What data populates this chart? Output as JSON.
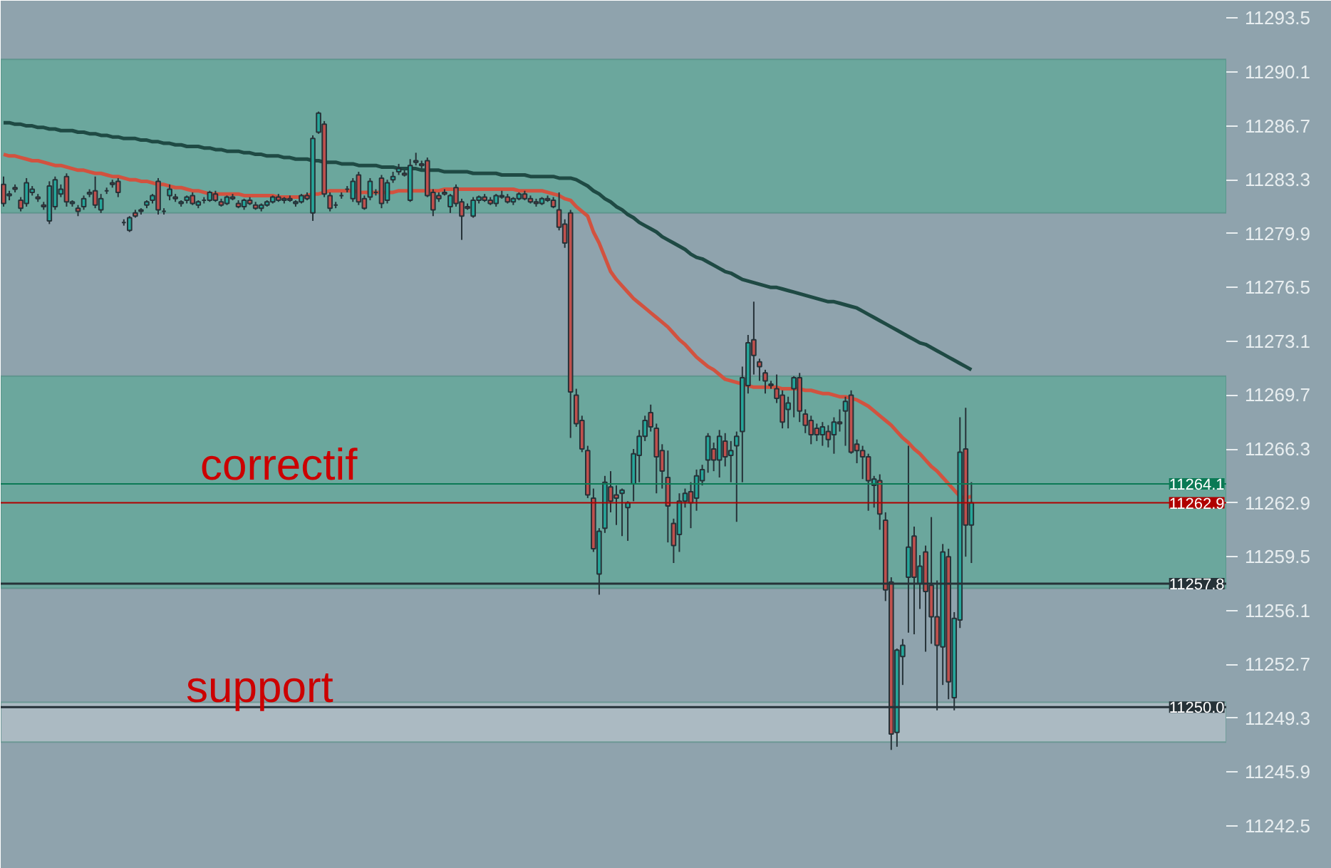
{
  "chart_data": {
    "type": "candlestick",
    "categories": [
      null,
      null,
      null,
      null,
      null,
      null,
      null,
      null,
      null,
      null,
      null,
      null,
      null,
      null,
      null,
      null,
      null,
      null,
      null,
      null,
      null,
      null,
      null,
      null,
      null,
      null,
      null,
      null,
      null,
      null,
      null,
      null,
      null,
      null,
      null,
      null,
      null,
      null,
      null,
      null,
      null,
      null,
      null,
      null,
      null,
      null,
      null,
      null,
      null,
      null,
      null,
      null,
      null,
      null,
      null,
      null,
      null,
      null,
      null,
      null,
      null,
      null,
      null,
      null,
      null,
      null,
      null,
      null,
      null,
      null,
      null,
      null,
      null,
      null,
      null,
      null,
      null,
      null,
      null,
      null,
      null,
      null,
      null,
      null,
      null,
      null,
      null,
      null,
      null,
      null,
      null,
      null,
      null,
      null,
      null,
      null,
      null,
      null,
      null,
      null,
      null,
      null,
      null,
      null,
      null,
      null,
      null,
      null,
      null,
      null,
      null,
      null,
      null,
      null,
      null,
      null,
      null,
      null,
      null,
      null,
      null,
      null,
      null,
      null,
      null,
      null,
      null,
      null,
      null,
      null,
      null,
      null,
      null,
      null,
      null,
      null,
      null,
      null,
      null,
      null,
      null,
      null,
      null,
      null,
      null,
      null,
      null,
      null,
      null,
      null,
      null,
      null,
      null,
      null,
      null,
      null,
      null,
      null,
      null,
      null,
      null,
      null,
      null,
      null,
      null,
      null,
      null,
      null,
      null,
      null,
      null,
      null,
      null,
      null,
      null,
      null,
      null,
      null,
      null,
      null,
      null,
      null,
      null,
      null,
      null,
      null,
      null,
      null,
      null,
      null,
      null,
      null,
      null,
      null,
      null,
      null,
      null,
      null,
      null,
      null,
      null,
      null,
      null,
      null,
      null,
      null,
      null,
      null,
      null,
      null,
      null,
      null,
      null,
      null
    ],
    "ohlc": [
      [
        11283.0,
        11283.5,
        11281.6,
        11281.8
      ],
      [
        11282.3,
        11282.6,
        11282.0,
        11282.4
      ],
      [
        11282.8,
        11283.0,
        11282.5,
        11282.7
      ],
      [
        11282.0,
        11282.2,
        11281.3,
        11281.5
      ],
      [
        11281.8,
        11283.4,
        11281.6,
        11283.1
      ],
      [
        11282.5,
        11282.9,
        11282.3,
        11282.7
      ],
      [
        11282.2,
        11282.4,
        11281.9,
        11282.1
      ],
      [
        11281.7,
        11281.9,
        11281.4,
        11281.6
      ],
      [
        11280.7,
        11283.2,
        11280.5,
        11282.9
      ],
      [
        11281.6,
        11283.5,
        11281.4,
        11283.3
      ],
      [
        11282.4,
        11283.0,
        11282.2,
        11282.7
      ],
      [
        11283.5,
        11283.7,
        11281.6,
        11281.9
      ],
      [
        11281.8,
        11282.0,
        11281.6,
        11281.9
      ],
      [
        11281.5,
        11281.7,
        11281.0,
        11281.3
      ],
      [
        11281.6,
        11282.3,
        11281.4,
        11282.1
      ],
      [
        11282.4,
        11282.7,
        11282.2,
        11282.5
      ],
      [
        11282.6,
        11283.5,
        11281.5,
        11281.7
      ],
      [
        11281.4,
        11282.4,
        11281.2,
        11282.1
      ],
      [
        11282.6,
        11282.8,
        11282.4,
        11282.6
      ],
      [
        11283.1,
        11283.3,
        11282.8,
        11283.0
      ],
      [
        11283.2,
        11283.4,
        11282.2,
        11282.5
      ],
      [
        11280.6,
        11280.8,
        11280.4,
        11280.6
      ],
      [
        11280.1,
        11281.0,
        11280.0,
        11280.9
      ],
      [
        11281.2,
        11281.4,
        11280.9,
        11281.0
      ],
      [
        11281.3,
        11281.5,
        11281.1,
        11281.4
      ],
      [
        11281.7,
        11282.0,
        11281.5,
        11281.9
      ],
      [
        11282.0,
        11282.4,
        11281.8,
        11282.3
      ],
      [
        11283.2,
        11283.4,
        11281.1,
        11281.4
      ],
      [
        11281.3,
        11281.5,
        11281.1,
        11281.3
      ],
      [
        11282.3,
        11283.0,
        11282.0,
        11282.7
      ],
      [
        11282.2,
        11282.4,
        11281.9,
        11282.1
      ],
      [
        11281.8,
        11282.0,
        11281.6,
        11281.9
      ],
      [
        11282.0,
        11282.3,
        11281.8,
        11282.2
      ],
      [
        11282.3,
        11282.5,
        11281.7,
        11281.8
      ],
      [
        11281.7,
        11282.0,
        11281.5,
        11281.9
      ],
      [
        11282.0,
        11282.2,
        11281.8,
        11282.0
      ],
      [
        11282.0,
        11282.6,
        11281.9,
        11282.5
      ],
      [
        11282.4,
        11282.6,
        11281.9,
        11282.0
      ],
      [
        11281.9,
        11282.1,
        11281.6,
        11281.7
      ],
      [
        11281.8,
        11282.3,
        11281.7,
        11282.2
      ],
      [
        11282.2,
        11282.4,
        11282.0,
        11282.1
      ],
      [
        11281.8,
        11282.0,
        11281.5,
        11281.6
      ],
      [
        11281.6,
        11282.1,
        11281.4,
        11282.0
      ],
      [
        11282.0,
        11282.2,
        11281.7,
        11281.8
      ],
      [
        11281.7,
        11281.9,
        11281.4,
        11281.5
      ],
      [
        11281.5,
        11281.8,
        11281.3,
        11281.7
      ],
      [
        11281.7,
        11282.0,
        11281.6,
        11281.9
      ],
      [
        11281.9,
        11282.3,
        11281.8,
        11282.2
      ],
      [
        11282.2,
        11282.4,
        11281.9,
        11282.0
      ],
      [
        11282.0,
        11282.2,
        11281.8,
        11282.1
      ],
      [
        11282.1,
        11282.3,
        11281.9,
        11282.0
      ],
      [
        11281.8,
        11282.0,
        11281.6,
        11281.9
      ],
      [
        11281.9,
        11282.4,
        11281.8,
        11282.3
      ],
      [
        11282.3,
        11282.5,
        11282.0,
        11282.1
      ],
      [
        11281.2,
        11286.1,
        11280.7,
        11285.9
      ],
      [
        11286.3,
        11287.6,
        11286.2,
        11287.5
      ],
      [
        11286.8,
        11287.0,
        11282.2,
        11282.4
      ],
      [
        11282.3,
        11282.5,
        11281.3,
        11281.5
      ],
      [
        11281.7,
        11281.9,
        11281.5,
        11281.7
      ],
      [
        11282.3,
        11282.5,
        11282.1,
        11282.3
      ],
      [
        11282.7,
        11282.9,
        11282.5,
        11282.7
      ],
      [
        11282.1,
        11283.4,
        11281.9,
        11283.2
      ],
      [
        11283.6,
        11283.8,
        11281.7,
        11281.9
      ],
      [
        11282.1,
        11282.3,
        11281.4,
        11281.5
      ],
      [
        11282.2,
        11283.4,
        11282.0,
        11283.2
      ],
      [
        11282.5,
        11282.7,
        11282.3,
        11282.5
      ],
      [
        11283.4,
        11283.6,
        11281.5,
        11281.8
      ],
      [
        11282.0,
        11283.3,
        11281.8,
        11283.1
      ],
      [
        11283.3,
        11283.8,
        11283.1,
        11283.5
      ],
      [
        11283.8,
        11284.3,
        11283.6,
        11284.0
      ],
      [
        11283.7,
        11283.9,
        11283.5,
        11283.6
      ],
      [
        11282.0,
        11284.6,
        11281.9,
        11284.2
      ],
      [
        11284.4,
        11285.0,
        11284.2,
        11284.5
      ],
      [
        11284.3,
        11284.5,
        11284.0,
        11284.2
      ],
      [
        11284.5,
        11284.7,
        11282.2,
        11282.3
      ],
      [
        11282.5,
        11282.7,
        11281.0,
        11281.4
      ],
      [
        11282.3,
        11282.5,
        11281.9,
        11282.1
      ],
      [
        11282.5,
        11282.7,
        11282.3,
        11282.4
      ],
      [
        11281.6,
        11282.4,
        11281.2,
        11282.3
      ],
      [
        11282.8,
        11283.0,
        11281.6,
        11281.8
      ],
      [
        11281.9,
        11282.1,
        11279.5,
        11281.0
      ],
      [
        11281.6,
        11281.8,
        11281.4,
        11281.5
      ],
      [
        11281.0,
        11282.2,
        11280.9,
        11282.0
      ],
      [
        11282.0,
        11282.3,
        11281.8,
        11282.2
      ],
      [
        11282.2,
        11282.4,
        11281.9,
        11282.0
      ],
      [
        11282.0,
        11282.2,
        11281.7,
        11281.8
      ],
      [
        11281.8,
        11282.4,
        11281.6,
        11282.3
      ],
      [
        11282.3,
        11282.6,
        11282.1,
        11282.2
      ],
      [
        11282.2,
        11282.4,
        11281.8,
        11281.9
      ],
      [
        11281.9,
        11282.2,
        11281.7,
        11282.1
      ],
      [
        11282.1,
        11282.5,
        11282.0,
        11282.4
      ],
      [
        11282.4,
        11282.6,
        11282.0,
        11282.1
      ],
      [
        11282.1,
        11282.3,
        11281.8,
        11281.9
      ],
      [
        11281.9,
        11282.1,
        11281.6,
        11281.8
      ],
      [
        11281.8,
        11282.2,
        11281.7,
        11282.1
      ],
      [
        11282.1,
        11282.3,
        11281.9,
        11282.0
      ],
      [
        11282.0,
        11282.2,
        11281.5,
        11281.6
      ],
      [
        11281.4,
        11282.5,
        11280.1,
        11280.3
      ],
      [
        11280.5,
        11280.8,
        11279.0,
        11279.3
      ],
      [
        11281.2,
        11281.4,
        11267.0,
        11269.9
      ],
      [
        11269.7,
        11270.1,
        11267.7,
        11267.9
      ],
      [
        11268.1,
        11268.4,
        11266.1,
        11266.3
      ],
      [
        11266.2,
        11266.5,
        11263.2,
        11263.4
      ],
      [
        11263.2,
        11263.8,
        11259.8,
        11260.0
      ],
      [
        11258.4,
        11261.3,
        11257.1,
        11261.1
      ],
      [
        11261.3,
        11264.6,
        11261.0,
        11264.2
      ],
      [
        11263.9,
        11264.9,
        11262.3,
        11263.0
      ],
      [
        11263.4,
        11264.0,
        11261.5,
        11263.2
      ],
      [
        11263.5,
        11263.8,
        11260.8,
        11263.7
      ],
      [
        11262.6,
        11263.0,
        11260.5,
        11262.9
      ],
      [
        11264.1,
        11266.3,
        11263.0,
        11266.0
      ],
      [
        11265.9,
        11267.5,
        11264.2,
        11267.1
      ],
      [
        11267.1,
        11268.4,
        11266.8,
        11268.1
      ],
      [
        11268.6,
        11269.1,
        11267.4,
        11267.7
      ],
      [
        11267.6,
        11267.9,
        11263.5,
        11265.8
      ],
      [
        11266.2,
        11266.6,
        11263.8,
        11264.9
      ],
      [
        11264.5,
        11266.2,
        11260.4,
        11262.7
      ],
      [
        11261.6,
        11261.9,
        11259.1,
        11260.2
      ],
      [
        11260.9,
        11263.5,
        11259.8,
        11263.0
      ],
      [
        11263.0,
        11263.8,
        11262.6,
        11263.5
      ],
      [
        11263.6,
        11264.2,
        11261.3,
        11262.9
      ],
      [
        11263.2,
        11265.0,
        11262.4,
        11264.6
      ],
      [
        11264.3,
        11265.3,
        11264.0,
        11265.0
      ],
      [
        11265.6,
        11267.3,
        11264.8,
        11267.1
      ],
      [
        11266.3,
        11266.7,
        11264.9,
        11265.6
      ],
      [
        11265.6,
        11267.5,
        11264.5,
        11267.1
      ],
      [
        11266.8,
        11267.3,
        11265.2,
        11265.8
      ],
      [
        11265.9,
        11266.8,
        11264.2,
        11266.2
      ],
      [
        11266.5,
        11267.4,
        11261.7,
        11267.1
      ],
      [
        11267.4,
        11271.5,
        11264.2,
        11270.8
      ],
      [
        11270.3,
        11273.5,
        11269.8,
        11273.0
      ],
      [
        11273.2,
        11275.6,
        11271.0,
        11272.2
      ],
      [
        11271.8,
        11272.0,
        11270.6,
        11271.5
      ],
      [
        11271.1,
        11271.3,
        11269.8,
        11270.6
      ],
      [
        11270.4,
        11270.6,
        11270.1,
        11270.3
      ],
      [
        11270.1,
        11271.0,
        11269.2,
        11269.5
      ],
      [
        11269.7,
        11270.0,
        11267.6,
        11268.0
      ],
      [
        11268.8,
        11269.6,
        11267.6,
        11269.2
      ],
      [
        11270.1,
        11270.9,
        11268.3,
        11270.8
      ],
      [
        11270.8,
        11271.1,
        11268.0,
        11268.7
      ],
      [
        11268.5,
        11268.8,
        11267.3,
        11267.8
      ],
      [
        11268.1,
        11268.4,
        11266.6,
        11267.2
      ],
      [
        11267.6,
        11267.9,
        11266.8,
        11267.2
      ],
      [
        11267.2,
        11268.0,
        11266.5,
        11267.7
      ],
      [
        11267.4,
        11267.8,
        11266.4,
        11266.9
      ],
      [
        11267.2,
        11268.3,
        11266.0,
        11268.0
      ],
      [
        11268.0,
        11268.8,
        11267.4,
        11267.9
      ],
      [
        11268.7,
        11269.6,
        11266.5,
        11269.3
      ],
      [
        11269.7,
        11270.0,
        11266.0,
        11266.1
      ],
      [
        11266.6,
        11266.9,
        11265.4,
        11266.2
      ],
      [
        11266.2,
        11266.5,
        11264.4,
        11265.8
      ],
      [
        11265.8,
        11266.0,
        11262.4,
        11264.3
      ],
      [
        11264.0,
        11264.6,
        11262.6,
        11264.4
      ],
      [
        11264.3,
        11264.7,
        11261.2,
        11262.2
      ],
      [
        11261.8,
        11262.3,
        11256.7,
        11257.4
      ],
      [
        11257.9,
        11258.2,
        11247.3,
        11248.3
      ],
      [
        11248.4,
        11253.7,
        11247.5,
        11253.6
      ],
      [
        11253.2,
        11254.3,
        11251.4,
        11253.9
      ],
      [
        11258.2,
        11266.5,
        11254.7,
        11260.1
      ],
      [
        11260.8,
        11261.4,
        11254.6,
        11258.2
      ],
      [
        11257.8,
        11259.6,
        11256.2,
        11258.9
      ],
      [
        11259.8,
        11260.2,
        11253.5,
        11257.3
      ],
      [
        11257.7,
        11262.0,
        11254.0,
        11255.7
      ],
      [
        11255.7,
        11258.0,
        11249.8,
        11253.9
      ],
      [
        11253.8,
        11260.3,
        11251.4,
        11259.8
      ],
      [
        11259.5,
        11260.0,
        11250.5,
        11251.6
      ],
      [
        11250.6,
        11256.0,
        11249.8,
        11255.6
      ],
      [
        11255.5,
        11268.3,
        11255.0,
        11266.1
      ],
      [
        11266.3,
        11268.9,
        11259.5,
        11261.5
      ],
      [
        11261.5,
        11264.2,
        11259.1,
        11262.9
      ],
      null,
      null,
      null,
      null,
      null,
      null,
      null,
      null,
      null,
      null,
      null,
      null,
      null,
      null,
      null,
      null,
      null,
      null,
      null,
      null,
      null,
      null,
      null,
      null,
      null,
      null,
      null,
      null,
      null,
      null,
      null,
      null,
      null,
      null,
      null,
      null,
      null,
      null,
      null,
      null,
      null,
      null,
      null,
      null
    ],
    "series": [
      {
        "type": "line",
        "color": "#1f4a44",
        "values": [
          11286.9,
          11286.9,
          11286.8,
          11286.8,
          11286.7,
          11286.7,
          11286.6,
          11286.6,
          11286.5,
          11286.5,
          11286.4,
          11286.4,
          11286.4,
          11286.3,
          11286.3,
          11286.2,
          11286.2,
          11286.1,
          11286.1,
          11286.0,
          11286.0,
          11285.9,
          11285.9,
          11285.9,
          11285.8,
          11285.8,
          11285.7,
          11285.7,
          11285.6,
          11285.6,
          11285.5,
          11285.5,
          11285.4,
          11285.4,
          11285.4,
          11285.3,
          11285.3,
          11285.2,
          11285.2,
          11285.1,
          11285.1,
          11285.1,
          11285.0,
          11285.0,
          11284.9,
          11284.9,
          11284.8,
          11284.8,
          11284.8,
          11284.7,
          11284.7,
          11284.6,
          11284.6,
          11284.6,
          11284.5,
          11284.5,
          11284.4,
          11284.4,
          11284.4,
          11284.3,
          11284.3,
          11284.3,
          11284.2,
          11284.2,
          11284.2,
          11284.2,
          11284.1,
          11284.1,
          11284.1,
          11284.0,
          11284.0,
          11284.0,
          11284.0,
          11283.9,
          11283.9,
          11283.9,
          11283.9,
          11283.8,
          11283.8,
          11283.8,
          11283.8,
          11283.8,
          11283.7,
          11283.7,
          11283.7,
          11283.7,
          11283.7,
          11283.6,
          11283.6,
          11283.6,
          11283.6,
          11283.6,
          11283.5,
          11283.5,
          11283.5,
          11283.5,
          11283.5,
          11283.4,
          11283.4,
          11283.4,
          11283.3,
          11283.1,
          11282.9,
          11282.6,
          11282.4,
          11282.1,
          11281.9,
          11281.6,
          11281.4,
          11281.1,
          11280.9,
          11280.6,
          11280.4,
          11280.2,
          11280.0,
          11279.7,
          11279.5,
          11279.3,
          11279.1,
          11278.9,
          11278.6,
          11278.4,
          11278.3,
          11278.1,
          11277.9,
          11277.7,
          11277.5,
          11277.4,
          11277.2,
          11277.0,
          11276.9,
          11276.8,
          11276.7,
          11276.6,
          11276.5,
          11276.5,
          11276.4,
          11276.3,
          11276.2,
          11276.1,
          11276.0,
          11275.9,
          11275.8,
          11275.7,
          11275.6,
          11275.6,
          11275.5,
          11275.4,
          11275.3,
          11275.2,
          11275.0,
          11274.8,
          11274.6,
          11274.4,
          11274.2,
          11274.0,
          11273.8,
          11273.6,
          11273.4,
          11273.2,
          11273.0,
          11272.9,
          11272.7,
          11272.5,
          11272.3,
          11272.1,
          11271.9,
          11271.7,
          11271.5,
          11271.3,
          null,
          null,
          null,
          null,
          null,
          null,
          null,
          null,
          null,
          null,
          null,
          null,
          null,
          null,
          null,
          null,
          null,
          null,
          null,
          null,
          null,
          null,
          null,
          null,
          null,
          null,
          null,
          null,
          null,
          null,
          null,
          null,
          null,
          null,
          null,
          null,
          null,
          null,
          null,
          null,
          null,
          null,
          null,
          null
        ]
      },
      {
        "type": "line",
        "color": "#d2523f",
        "values": [
          11284.9,
          11284.8,
          11284.8,
          11284.7,
          11284.6,
          11284.5,
          11284.5,
          11284.4,
          11284.3,
          11284.2,
          11284.2,
          11284.1,
          11284.0,
          11283.9,
          11283.9,
          11283.8,
          11283.7,
          11283.7,
          11283.6,
          11283.5,
          11283.5,
          11283.4,
          11283.3,
          11283.3,
          11283.2,
          11283.2,
          11283.1,
          11283.0,
          11283.0,
          11282.9,
          11282.8,
          11282.8,
          11282.7,
          11282.6,
          11282.6,
          11282.5,
          11282.4,
          11282.4,
          11282.4,
          11282.4,
          11282.4,
          11282.4,
          11282.3,
          11282.3,
          11282.3,
          11282.3,
          11282.3,
          11282.3,
          11282.2,
          11282.2,
          11282.2,
          11282.2,
          11282.2,
          11282.3,
          11282.4,
          11282.4,
          11282.5,
          11282.6,
          11282.6,
          11282.6,
          11282.6,
          11282.6,
          11282.5,
          11282.5,
          11282.5,
          11282.5,
          11282.5,
          11282.5,
          11282.5,
          11282.6,
          11282.6,
          11282.6,
          11282.6,
          11282.6,
          11282.6,
          11282.6,
          11282.6,
          11282.7,
          11282.7,
          11282.7,
          11282.7,
          11282.7,
          11282.7,
          11282.7,
          11282.7,
          11282.7,
          11282.7,
          11282.7,
          11282.7,
          11282.7,
          11282.6,
          11282.6,
          11282.6,
          11282.6,
          11282.6,
          11282.5,
          11282.4,
          11282.3,
          11282.1,
          11282.0,
          11281.6,
          11281.3,
          11281.0,
          11280.0,
          11279.3,
          11278.4,
          11277.5,
          11277.0,
          11276.6,
          11276.2,
          11275.8,
          11275.5,
          11275.2,
          11274.9,
          11274.6,
          11274.3,
          11274.0,
          11273.6,
          11273.2,
          11272.9,
          11272.5,
          11272.1,
          11271.8,
          11271.5,
          11271.3,
          11271.0,
          11270.7,
          11270.6,
          11270.5,
          11270.4,
          11270.3,
          11270.2,
          11270.2,
          11270.2,
          11270.2,
          11270.2,
          11270.1,
          11270.1,
          11270.1,
          11270.1,
          11270.0,
          11270.0,
          11269.9,
          11269.8,
          11269.8,
          11269.7,
          11269.6,
          11269.6,
          11269.5,
          11269.4,
          11269.2,
          11269.0,
          11268.7,
          11268.4,
          11268.1,
          11267.8,
          11267.4,
          11267.0,
          11266.7,
          11266.3,
          11266.0,
          11265.6,
          11265.2,
          11264.9,
          11264.5,
          11264.1,
          11263.7,
          11263.3,
          11263.2,
          11263.3,
          null,
          null,
          null,
          null,
          null,
          null,
          null,
          null,
          null,
          null,
          null,
          null,
          null,
          null,
          null,
          null,
          null,
          null,
          null,
          null,
          null,
          null,
          null,
          null,
          null,
          null,
          null,
          null,
          null,
          null,
          null,
          null,
          null,
          null,
          null,
          null,
          null,
          null,
          null,
          null,
          null,
          null,
          null,
          null
        ]
      }
    ],
    "ylim": [
      11239.8,
      11294.6
    ],
    "yticks": [
      11242.5,
      11245.9,
      11249.3,
      11252.7,
      11256.1,
      11259.5,
      11262.9,
      11266.3,
      11269.7,
      11273.1,
      11276.5,
      11279.9,
      11283.3,
      11286.7,
      11290.1,
      11293.5
    ],
    "bands": [
      {
        "axis": "y",
        "from": 11281.2,
        "to": 11290.9,
        "color": "#5fa898"
      },
      {
        "axis": "y",
        "from": 11257.5,
        "to": 11270.9,
        "color": "#5fa898"
      },
      {
        "axis": "y",
        "from": 11247.8,
        "to": 11250.3,
        "color": "#b4c2c9"
      }
    ],
    "ref_lines": [
      {
        "axis": "y",
        "value": 11264.1,
        "label": "11264.1",
        "color": "#0b7a55"
      },
      {
        "axis": "y",
        "value": 11262.9,
        "label": "11262.9",
        "color": "#b00000"
      },
      {
        "axis": "y",
        "value": 11257.8,
        "label": "11257.8",
        "color": "#263238"
      },
      {
        "axis": "y",
        "value": 11250.0,
        "label": "11250.0",
        "color": "#263238"
      }
    ],
    "annotations": [
      "correctif",
      "support"
    ],
    "grid": false,
    "tick_labels": "y"
  }
}
